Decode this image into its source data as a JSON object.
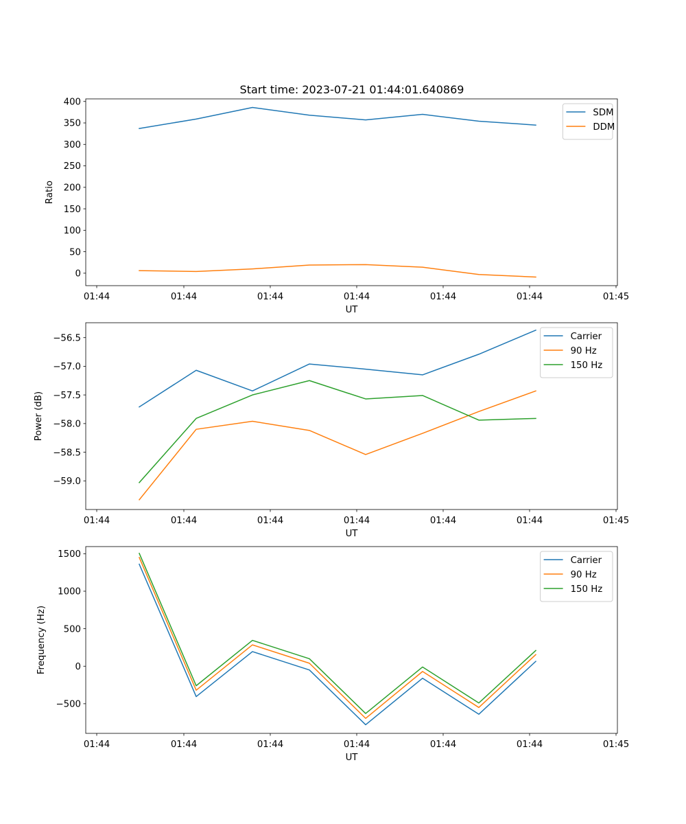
{
  "figure_title": "Start time: 2023-07-21 01:44:01.640869",
  "chart_data": [
    {
      "type": "line",
      "xlabel": "UT",
      "ylabel": "Ratio",
      "x_tick_labels": [
        "01:44",
        "01:44",
        "01:44",
        "01:44",
        "01:44",
        "01:44",
        "01:45"
      ],
      "y_ticks": [
        0,
        50,
        100,
        150,
        200,
        250,
        300,
        350,
        400
      ],
      "y_tick_labels": [
        "0",
        "50",
        "100",
        "150",
        "200",
        "250",
        "300",
        "350",
        "400"
      ],
      "ylim": [
        -29,
        406
      ],
      "legend_position": "top-right",
      "series": [
        {
          "name": "SDM",
          "color": "#1f77b4",
          "values": [
            337,
            359,
            386,
            368,
            357,
            370,
            354,
            345
          ]
        },
        {
          "name": "DDM",
          "color": "#ff7f0e",
          "values": [
            6,
            4,
            10,
            19,
            20,
            14,
            -3,
            -9
          ]
        }
      ]
    },
    {
      "type": "line",
      "xlabel": "UT",
      "ylabel": "Power (dB)",
      "x_tick_labels": [
        "01:44",
        "01:44",
        "01:44",
        "01:44",
        "01:44",
        "01:44",
        "01:45"
      ],
      "y_ticks": [
        -59.0,
        -58.5,
        -58.0,
        -57.5,
        -57.0,
        -56.5
      ],
      "y_tick_labels": [
        "−59.0",
        "−58.5",
        "−58.0",
        "−57.5",
        "−57.0",
        "−56.5"
      ],
      "ylim": [
        -59.5,
        -56.24
      ],
      "legend_position": "top-right",
      "series": [
        {
          "name": "Carrier",
          "color": "#1f77b4",
          "values": [
            -57.71,
            -57.07,
            -57.43,
            -56.96,
            -57.05,
            -57.15,
            -56.79,
            -56.37
          ]
        },
        {
          "name": "90 Hz",
          "color": "#ff7f0e",
          "values": [
            -59.33,
            -58.1,
            -57.96,
            -58.12,
            -58.54,
            -58.17,
            -57.79,
            -57.43
          ]
        },
        {
          "name": "150 Hz",
          "color": "#2ca02c",
          "values": [
            -59.03,
            -57.91,
            -57.5,
            -57.25,
            -57.57,
            -57.51,
            -57.94,
            -57.91
          ]
        }
      ]
    },
    {
      "type": "line",
      "xlabel": "UT",
      "ylabel": "Frequency (Hz)",
      "x_tick_labels": [
        "01:44",
        "01:44",
        "01:44",
        "01:44",
        "01:44",
        "01:44",
        "01:45"
      ],
      "y_ticks": [
        -500,
        0,
        500,
        1000,
        1500
      ],
      "y_tick_labels": [
        "−500",
        "0",
        "500",
        "1000",
        "1500"
      ],
      "ylim": [
        -895,
        1595
      ],
      "legend_position": "top-right",
      "series": [
        {
          "name": "Carrier",
          "color": "#1f77b4",
          "values": [
            1360,
            -405,
            195,
            -50,
            -780,
            -160,
            -640,
            65
          ]
        },
        {
          "name": "90 Hz",
          "color": "#ff7f0e",
          "values": [
            1450,
            -320,
            285,
            40,
            -695,
            -70,
            -550,
            155
          ]
        },
        {
          "name": "150 Hz",
          "color": "#2ca02c",
          "values": [
            1505,
            -260,
            345,
            100,
            -630,
            -10,
            -490,
            210
          ]
        }
      ]
    }
  ]
}
